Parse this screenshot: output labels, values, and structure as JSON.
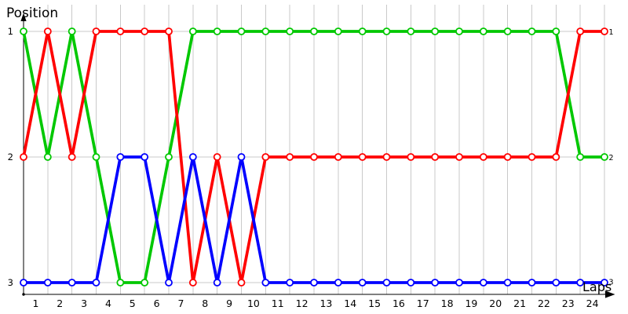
{
  "chart_data": {
    "type": "line",
    "title": "",
    "ylabel": "Position",
    "xlabel": "Laps",
    "y_ticks": [
      "1",
      "2",
      "3"
    ],
    "x_ticks": [
      "1",
      "2",
      "3",
      "4",
      "5",
      "6",
      "7",
      "8",
      "9",
      "10",
      "11",
      "12",
      "13",
      "14",
      "15",
      "16",
      "17",
      "18",
      "19",
      "20",
      "21",
      "22",
      "23",
      "24"
    ],
    "right_edge_labels": [
      "1",
      "2",
      "3"
    ],
    "x_columns": 25,
    "x_tick_alignment": "between-columns",
    "y_axis_inverted": true,
    "ylim": [
      1,
      3
    ],
    "grid": true,
    "legend": "none",
    "marker_style": "open-circle",
    "grid_color": "#c9c9c9",
    "axis_color": "#000000",
    "background_color": "#ffffff",
    "series": [
      {
        "name": "green",
        "color": "#00c800",
        "positions": [
          1,
          2,
          1,
          2,
          3,
          3,
          2,
          1,
          1,
          1,
          1,
          1,
          1,
          1,
          1,
          1,
          1,
          1,
          1,
          1,
          1,
          1,
          1,
          2,
          2
        ]
      },
      {
        "name": "red",
        "color": "#ff0000",
        "positions": [
          2,
          1,
          2,
          1,
          1,
          1,
          1,
          3,
          2,
          3,
          2,
          2,
          2,
          2,
          2,
          2,
          2,
          2,
          2,
          2,
          2,
          2,
          2,
          1,
          1
        ]
      },
      {
        "name": "blue",
        "color": "#0000ff",
        "positions": [
          3,
          3,
          3,
          3,
          2,
          2,
          3,
          2,
          3,
          2,
          3,
          3,
          3,
          3,
          3,
          3,
          3,
          3,
          3,
          3,
          3,
          3,
          3,
          3,
          3
        ]
      }
    ]
  }
}
